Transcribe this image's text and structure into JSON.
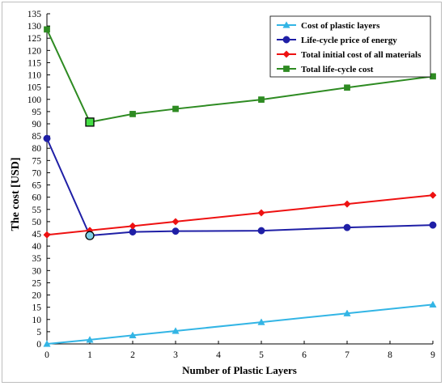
{
  "chart_data": {
    "type": "line",
    "title": "",
    "xlabel": "Number of Plastic Layers",
    "ylabel": "The cost [USD]",
    "xlim": [
      0,
      9
    ],
    "ylim": [
      0,
      135
    ],
    "xticks": [
      0,
      1,
      2,
      3,
      4,
      5,
      6,
      7,
      8,
      9
    ],
    "yticks": [
      0,
      5,
      10,
      15,
      20,
      25,
      30,
      35,
      40,
      45,
      50,
      55,
      60,
      65,
      70,
      75,
      80,
      85,
      90,
      95,
      100,
      105,
      110,
      115,
      120,
      125,
      130,
      135
    ],
    "grid": false,
    "legend_position": "top-right",
    "series": [
      {
        "name": "Cost of plastic layers",
        "color": "#33b5e5",
        "marker": "triangle",
        "x": [
          0,
          1,
          2,
          3,
          5,
          7,
          9
        ],
        "values": [
          0,
          1.7,
          3.5,
          5.3,
          8.9,
          12.5,
          16.1
        ]
      },
      {
        "name": "Life-cycle price of energy",
        "color": "#1f1fa6",
        "marker": "circle",
        "x": [
          0,
          1,
          2,
          3,
          5,
          7,
          9
        ],
        "values": [
          84,
          44.3,
          45.8,
          46.1,
          46.3,
          47.6,
          48.6
        ]
      },
      {
        "name": "Total initial cost of all materials",
        "color": "#ee1111",
        "marker": "diamond",
        "x": [
          0,
          1,
          2,
          3,
          5,
          7,
          9
        ],
        "values": [
          44.6,
          46.4,
          48.2,
          50,
          53.6,
          57.2,
          60.8
        ]
      },
      {
        "name": "Total life-cycle cost",
        "color": "#2e8b22",
        "marker": "square",
        "x": [
          0,
          1,
          2,
          3,
          5,
          7,
          9
        ],
        "values": [
          128.6,
          90.7,
          94,
          96.1,
          99.9,
          104.8,
          109.4
        ]
      }
    ],
    "highlights": [
      {
        "series": "Life-cycle price of energy",
        "x": 1,
        "value": 44.3,
        "fill": "#7fd0e6"
      },
      {
        "series": "Total life-cycle cost",
        "x": 1,
        "value": 90.7,
        "fill": "#44dd44"
      }
    ]
  }
}
